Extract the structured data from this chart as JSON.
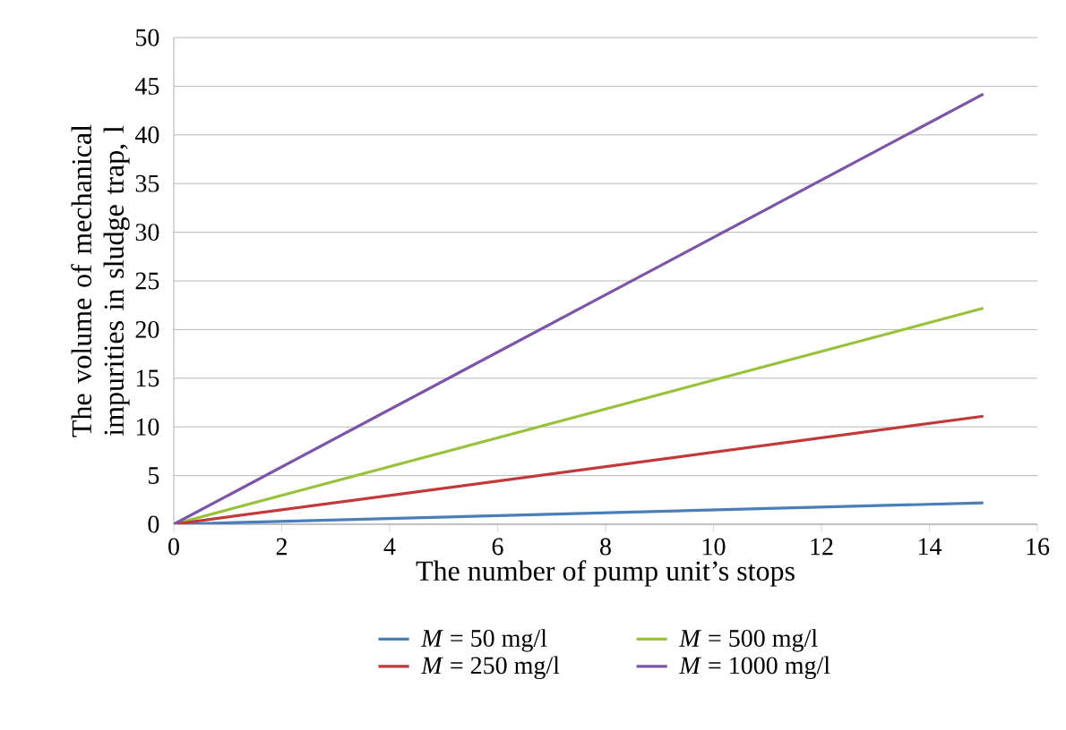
{
  "chart_data": {
    "type": "line",
    "xlabel": "The number of pump unit’s stops",
    "ylabel": "The volume of mechanical impurities in sludge trap, l",
    "x": [
      0,
      15
    ],
    "series": [
      {
        "name": "*M* = 50 mg/l",
        "color": "#4a7ebb",
        "values": [
          0,
          2.2
        ]
      },
      {
        "name": "*M* = 500 mg/l",
        "color": "#98c13d",
        "values": [
          0,
          22.2
        ]
      },
      {
        "name": "*M* = 250 mg/l",
        "color": "#c0393b",
        "values": [
          0,
          11.1
        ]
      },
      {
        "name": "*M* = 1000 mg/l",
        "color": "#7d55a5",
        "values": [
          0,
          44.2
        ]
      }
    ],
    "xlim": [
      0,
      16
    ],
    "xticks": [
      0,
      2,
      4,
      6,
      8,
      10,
      12,
      14,
      16
    ],
    "ylim": [
      0,
      50
    ],
    "yticks": [
      0,
      5,
      10,
      15,
      20,
      25,
      30,
      35,
      40,
      45,
      50
    ],
    "grid": "y",
    "legend": "bottom",
    "marker": "none",
    "line_style": "solid"
  }
}
